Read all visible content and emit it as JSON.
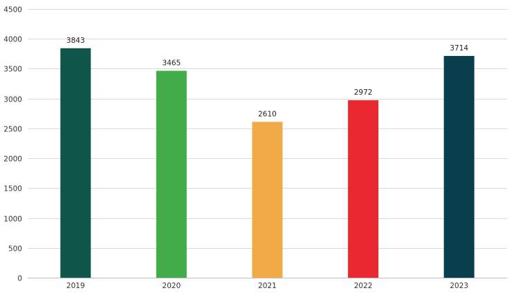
{
  "chart_data": {
    "type": "bar",
    "title": "",
    "xlabel": "",
    "ylabel": "",
    "categories": [
      "2019",
      "2020",
      "2021",
      "2022",
      "2023"
    ],
    "values": [
      3843,
      3465,
      2610,
      2972,
      3714
    ],
    "colors": [
      "#10564a",
      "#42ad48",
      "#f0ab48",
      "#e9292f",
      "#093f4d"
    ],
    "ylim": [
      0,
      4500
    ],
    "yticks": [
      0,
      500,
      1000,
      1500,
      2000,
      2500,
      3000,
      3500,
      4000,
      4500
    ],
    "grid": true,
    "legend": "none",
    "data_labels": true
  }
}
